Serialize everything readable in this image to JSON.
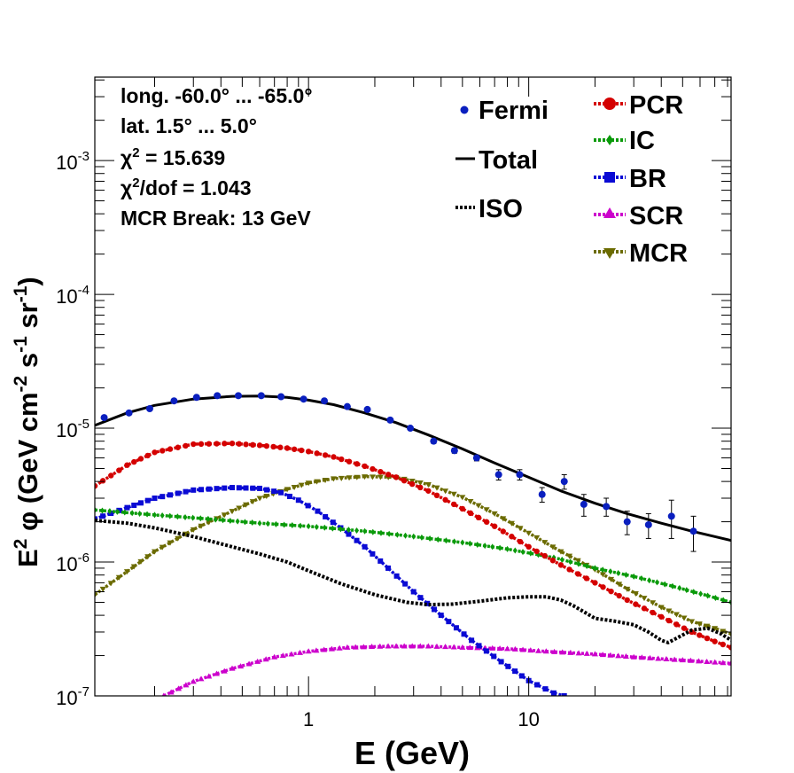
{
  "chart_data": {
    "type": "line",
    "x_scale": "log",
    "y_scale": "log",
    "xlim": [
      0.107,
      83
    ],
    "ylim": [
      1e-07,
      0.0042
    ],
    "xlabel": "E (GeV)",
    "ylabel_parts": [
      "E",
      "2",
      " φ (GeV cm",
      "-2",
      " s",
      "-1",
      " sr",
      "-1",
      ")"
    ],
    "x_ticks": [
      {
        "v": 1,
        "label": "1"
      },
      {
        "v": 10,
        "label": "10"
      }
    ],
    "y_ticks": [
      {
        "v": 1e-07,
        "base": "10",
        "exp": "-7"
      },
      {
        "v": 1e-06,
        "base": "10",
        "exp": "-6"
      },
      {
        "v": 1e-05,
        "base": "10",
        "exp": "-5"
      },
      {
        "v": 0.0001,
        "base": "10",
        "exp": "-4"
      },
      {
        "v": 0.001,
        "base": "10",
        "exp": "-3"
      }
    ],
    "info": {
      "long": "long. -60.0° ... -65.0°",
      "lat": "lat. 1.5° ... 5.0°",
      "chi_sym": "χ",
      "chi_exp": "2",
      "chi_val": " = 15.639",
      "chidof_exp": "2",
      "chidof_val": "/dof = 1.043",
      "mcr": "MCR Break: 13 GeV"
    },
    "legend_left": [
      "Fermi",
      "Total",
      "ISO"
    ],
    "legend_right": [
      "PCR",
      "IC",
      "BR",
      "SCR",
      "MCR"
    ],
    "series": [
      {
        "name": "Fermi",
        "kind": "points",
        "color": "#0a1fbf",
        "x": [
          0.118,
          0.19,
          0.31,
          0.48,
          0.75,
          1.18,
          1.85,
          2.9,
          4.6,
          7.3,
          11.5,
          17.8,
          28,
          44.5,
          70,
          0.153,
          0.245,
          0.385,
          0.61,
          0.95,
          1.5,
          2.35,
          3.7,
          5.8,
          9.1,
          14.5,
          22.5,
          35,
          56
        ],
        "y": [
          1.2e-05,
          1.4e-05,
          1.7e-05,
          1.75e-05,
          1.72e-05,
          1.6e-05,
          1.38e-05,
          1e-05,
          6.8e-06,
          4.5e-06,
          3.2e-06,
          2.7e-06,
          2e-06,
          2.2e-06,
          null,
          1.3e-05,
          1.6e-05,
          1.75e-05,
          1.75e-05,
          1.65e-05,
          1.45e-05,
          1.15e-05,
          8e-06,
          6e-06,
          4.5e-06,
          4e-06,
          2.6e-06,
          1.9e-06,
          1.7e-06
        ],
        "yerr": [
          [
            1.2e-05,
            2e-07
          ],
          [
            1.4e-05,
            2e-07
          ],
          [
            1.7e-05,
            2e-07
          ],
          [
            1.75e-05,
            2e-07
          ],
          [
            1.72e-05,
            2e-07
          ],
          [
            1.6e-05,
            2e-07
          ],
          [
            1.38e-05,
            2e-07
          ],
          [
            1e-05,
            2e-07
          ],
          [
            6.8e-06,
            3e-07
          ],
          [
            4.5e-06,
            4e-07
          ],
          [
            3.2e-06,
            4e-07
          ],
          [
            2.7e-06,
            5e-07
          ],
          [
            2e-06,
            4e-07
          ],
          [
            2.2e-06,
            7e-07
          ],
          [
            0,
            0
          ],
          [
            1.3e-05,
            2e-07
          ],
          [
            1.6e-05,
            2e-07
          ],
          [
            1.75e-05,
            2e-07
          ],
          [
            1.75e-05,
            2e-07
          ],
          [
            1.65e-05,
            2e-07
          ],
          [
            1.45e-05,
            2e-07
          ],
          [
            1.15e-05,
            2e-07
          ],
          [
            8e-06,
            3e-07
          ],
          [
            6e-06,
            3e-07
          ],
          [
            4.5e-06,
            4e-07
          ],
          [
            4e-06,
            5e-07
          ],
          [
            2.6e-06,
            4e-07
          ],
          [
            1.9e-06,
            4e-07
          ],
          [
            1.7e-06,
            5e-07
          ]
        ]
      },
      {
        "name": "Total",
        "kind": "line",
        "color": "#000000",
        "x": [
          0.107,
          0.15,
          0.2,
          0.3,
          0.45,
          0.6,
          0.8,
          1.0,
          1.3,
          1.8,
          2.5,
          3.5,
          5,
          7,
          10,
          14,
          20,
          28,
          40,
          55,
          70,
          83
        ],
        "y": [
          1.05e-05,
          1.3e-05,
          1.48e-05,
          1.65e-05,
          1.73e-05,
          1.74e-05,
          1.7e-05,
          1.62e-05,
          1.5e-05,
          1.3e-05,
          1.1e-05,
          8.9e-06,
          7e-06,
          5.5e-06,
          4.3e-06,
          3.4e-06,
          2.75e-06,
          2.3e-06,
          1.95e-06,
          1.7e-06,
          1.55e-06,
          1.45e-06
        ]
      },
      {
        "name": "ISO",
        "kind": "dotted",
        "color": "#000000",
        "x": [
          0.107,
          0.15,
          0.2,
          0.3,
          0.45,
          0.6,
          0.8,
          1.0,
          1.4,
          2.0,
          2.8,
          3.5,
          4.5,
          6,
          8,
          10,
          12,
          14,
          16,
          18,
          20,
          25,
          30,
          35,
          40,
          43,
          48,
          55,
          65,
          75,
          83
        ],
        "y": [
          2.05e-06,
          1.95e-06,
          1.8e-06,
          1.55e-06,
          1.3e-06,
          1.15e-06,
          1e-06,
          8.6e-07,
          6.9e-07,
          5.7e-07,
          5e-07,
          4.8e-07,
          4.85e-07,
          5.1e-07,
          5.4e-07,
          5.5e-07,
          5.5e-07,
          5.2e-07,
          4.7e-07,
          4.2e-07,
          3.8e-07,
          3.6e-07,
          3.4e-07,
          3e-07,
          2.6e-07,
          2.5e-07,
          2.75e-07,
          3.1e-07,
          3.2e-07,
          2.9e-07,
          2.6e-07
        ]
      },
      {
        "name": "PCR",
        "kind": "markers",
        "marker": "circle",
        "color": "#d40000",
        "x": [
          0.107,
          0.15,
          0.2,
          0.3,
          0.45,
          0.6,
          0.8,
          1.0,
          1.3,
          1.8,
          2.5,
          3.5,
          5,
          7,
          10,
          14,
          20,
          28,
          40,
          55,
          70,
          83
        ],
        "y": [
          3.7e-06,
          5.3e-06,
          6.6e-06,
          7.6e-06,
          7.7e-06,
          7.45e-06,
          7.1e-06,
          6.7e-06,
          6.1e-06,
          5.2e-06,
          4.3e-06,
          3.4e-06,
          2.5e-06,
          1.85e-06,
          1.3e-06,
          9.5e-07,
          7e-07,
          5.2e-07,
          3.9e-07,
          3e-07,
          2.55e-07,
          2.3e-07
        ]
      },
      {
        "name": "IC",
        "kind": "markers",
        "marker": "diamond",
        "color": "#0a9a0a",
        "x": [
          0.107,
          0.2,
          0.35,
          0.6,
          1.0,
          1.8,
          3.0,
          5,
          8,
          13,
          20,
          30,
          45,
          65,
          83
        ],
        "y": [
          2.45e-06,
          2.25e-06,
          2.1e-06,
          1.95e-06,
          1.85e-06,
          1.7e-06,
          1.55e-06,
          1.4e-06,
          1.25e-06,
          1.08e-06,
          9e-07,
          7.8e-07,
          6.6e-07,
          5.6e-07,
          5e-07
        ]
      },
      {
        "name": "BR",
        "kind": "markers",
        "marker": "square",
        "color": "#0a0ad4",
        "x": [
          0.107,
          0.15,
          0.2,
          0.3,
          0.45,
          0.6,
          0.75,
          0.9,
          1.1,
          1.4,
          1.8,
          2.3,
          3.0,
          4.0,
          5.5,
          7.5,
          10,
          13,
          14.5
        ],
        "y": [
          2.1e-06,
          2.55e-06,
          3e-06,
          3.45e-06,
          3.6e-06,
          3.55e-06,
          3.3e-06,
          2.9e-06,
          2.4e-06,
          1.8e-06,
          1.3e-06,
          9e-07,
          6e-07,
          4e-07,
          2.6e-07,
          1.8e-07,
          1.3e-07,
          1.05e-07,
          1e-07
        ]
      },
      {
        "name": "SCR",
        "kind": "markers",
        "marker": "triangle",
        "color": "#cc00cc",
        "x": [
          0.22,
          0.3,
          0.45,
          0.7,
          1.0,
          1.5,
          2.3,
          3.5,
          5,
          8,
          12,
          20,
          30,
          50,
          83
        ],
        "y": [
          1e-07,
          1.28e-07,
          1.6e-07,
          1.95e-07,
          2.15e-07,
          2.3e-07,
          2.35e-07,
          2.35e-07,
          2.3e-07,
          2.25e-07,
          2.15e-07,
          2.05e-07,
          1.95e-07,
          1.85e-07,
          1.75e-07
        ]
      },
      {
        "name": "MCR",
        "kind": "markers",
        "marker": "tri-down",
        "color": "#6b6b00",
        "x": [
          0.107,
          0.15,
          0.2,
          0.3,
          0.45,
          0.6,
          0.8,
          1.0,
          1.3,
          1.8,
          2.5,
          3.5,
          5,
          7,
          10,
          14,
          20,
          28,
          40,
          55,
          70,
          83
        ],
        "y": [
          5.7e-07,
          8.5e-07,
          1.2e-06,
          1.75e-06,
          2.4e-06,
          3e-06,
          3.5e-06,
          3.9e-06,
          4.2e-06,
          4.35e-06,
          4.3e-06,
          3.8e-06,
          3.05e-06,
          2.3e-06,
          1.65e-06,
          1.2e-06,
          8.8e-07,
          6.3e-07,
          4.6e-07,
          3.6e-07,
          3.2e-07,
          2.9e-07
        ]
      }
    ]
  }
}
